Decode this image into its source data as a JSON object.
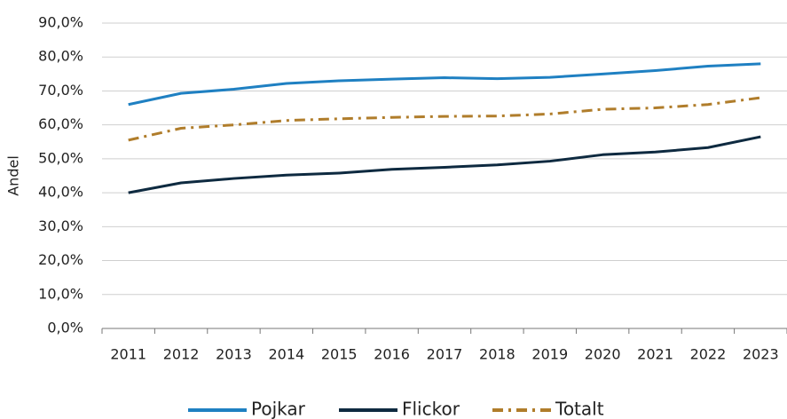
{
  "chart_data": {
    "type": "line",
    "y_label": "Andel",
    "categories": [
      "2011",
      "2012",
      "2013",
      "2014",
      "2015",
      "2016",
      "2017",
      "2018",
      "2019",
      "2020",
      "2021",
      "2022",
      "2023"
    ],
    "series": [
      {
        "name": "Pojkar",
        "color": "#1f80c2",
        "dash": "solid",
        "values": [
          66.0,
          69.3,
          70.5,
          72.2,
          73.0,
          73.5,
          73.9,
          73.6,
          74.0,
          75.0,
          76.0,
          77.3,
          78.0
        ]
      },
      {
        "name": "Flickor",
        "color": "#0e2a40",
        "dash": "solid",
        "values": [
          40.0,
          42.9,
          44.2,
          45.2,
          45.8,
          46.9,
          47.5,
          48.2,
          49.3,
          51.2,
          52.0,
          53.3,
          56.5
        ]
      },
      {
        "name": "Totalt",
        "color": "#b07d2b",
        "dash": "dashdot",
        "values": [
          55.5,
          59.0,
          60.0,
          61.3,
          61.8,
          62.2,
          62.5,
          62.6,
          63.2,
          64.6,
          65.0,
          66.0,
          68.0
        ]
      }
    ],
    "ylim": [
      0,
      90
    ],
    "yticks": [
      {
        "value": 0,
        "label": "0,0%"
      },
      {
        "value": 10,
        "label": "10,0%"
      },
      {
        "value": 20,
        "label": "20,0%"
      },
      {
        "value": 30,
        "label": "30,0%"
      },
      {
        "value": 40,
        "label": "40,0%"
      },
      {
        "value": 50,
        "label": "50,0%"
      },
      {
        "value": 60,
        "label": "60,0%"
      },
      {
        "value": 70,
        "label": "70,0%"
      },
      {
        "value": 80,
        "label": "80,0%"
      },
      {
        "value": 90,
        "label": "90,0%"
      }
    ],
    "grid": true,
    "legend": "bottom"
  }
}
